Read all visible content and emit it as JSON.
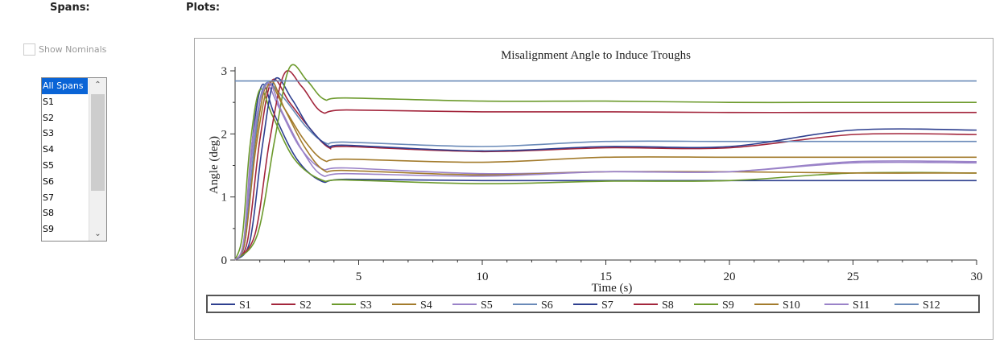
{
  "spans_header": "Spans:",
  "plots_header": "Plots:",
  "show_nominals": {
    "label": "Show Nominals",
    "checked": false,
    "enabled": false
  },
  "spans_list": {
    "items": [
      "All Spans",
      "S1",
      "S2",
      "S3",
      "S4",
      "S5",
      "S6",
      "S7",
      "S8",
      "S9"
    ],
    "selected": "All Spans"
  },
  "chart_data": {
    "type": "line",
    "title": "Misalignment Angle to Induce Troughs",
    "xlabel": "Time (s)",
    "ylabel": "Angle (deg)",
    "xlim": [
      0,
      30
    ],
    "ylim": [
      0,
      3
    ],
    "xticks": [
      5,
      10,
      15,
      20,
      25,
      30
    ],
    "yticks": [
      0,
      1,
      2,
      3
    ],
    "grid": false,
    "legend": "bottom",
    "series": [
      {
        "name": "S1",
        "color": "#2e3f8f",
        "x": [
          0,
          0.4,
          0.7,
          1.1,
          1.6,
          2.5,
          3.5,
          4.5,
          10,
          15,
          20,
          25,
          30
        ],
        "y": [
          0,
          0.3,
          1.9,
          2.78,
          2.3,
          1.6,
          1.25,
          1.28,
          1.26,
          1.26,
          1.26,
          1.26,
          1.26
        ]
      },
      {
        "name": "S2",
        "color": "#a3263c",
        "x": [
          0,
          0.5,
          1.0,
          1.5,
          2.2,
          3.0,
          3.8,
          4.5,
          10,
          15,
          20,
          25,
          30
        ],
        "y": [
          0,
          0.3,
          1.9,
          2.85,
          2.5,
          2.1,
          1.78,
          1.8,
          1.72,
          1.78,
          1.78,
          1.99,
          1.99
        ]
      },
      {
        "name": "S3",
        "color": "#6c9a2c",
        "x": [
          0,
          0.3,
          0.6,
          1.0,
          1.5,
          2.4,
          3.5,
          4.5,
          10,
          15,
          20,
          25,
          30
        ],
        "y": [
          0,
          0.4,
          1.8,
          2.7,
          2.3,
          1.6,
          1.27,
          1.27,
          1.21,
          1.25,
          1.26,
          1.38,
          1.38
        ]
      },
      {
        "name": "S4",
        "color": "#a37b2c",
        "x": [
          0,
          0.4,
          0.8,
          1.3,
          2.0,
          2.8,
          3.6,
          4.5,
          10,
          15,
          20,
          25,
          30
        ],
        "y": [
          0,
          0.3,
          1.8,
          2.8,
          2.4,
          1.9,
          1.58,
          1.6,
          1.55,
          1.63,
          1.63,
          1.63,
          1.63
        ]
      },
      {
        "name": "S5",
        "color": "#9a82c8",
        "x": [
          0,
          0.35,
          0.75,
          1.2,
          1.8,
          2.6,
          3.5,
          4.5,
          10,
          15,
          20,
          25,
          30
        ],
        "y": [
          0,
          0.3,
          1.9,
          2.78,
          2.4,
          1.8,
          1.45,
          1.46,
          1.37,
          1.4,
          1.4,
          1.56,
          1.56
        ]
      },
      {
        "name": "S6",
        "color": "#6a8ab8",
        "x": [
          0,
          0.4,
          0.8,
          1.2,
          1.9,
          2.9,
          3.7,
          4.5,
          10,
          15,
          20,
          25,
          30
        ],
        "y": [
          0,
          0.3,
          1.9,
          2.78,
          2.6,
          2.1,
          1.85,
          1.87,
          1.8,
          1.88,
          1.88,
          1.88,
          1.88
        ]
      },
      {
        "name": "S7",
        "color": "#2e3f8f",
        "x": [
          0,
          0.6,
          1.1,
          1.6,
          2.3,
          3.0,
          3.8,
          4.5,
          10,
          15,
          20,
          25,
          30
        ],
        "y": [
          0,
          0.3,
          1.8,
          2.86,
          2.55,
          2.1,
          1.8,
          1.82,
          1.73,
          1.8,
          1.8,
          2.06,
          2.06
        ]
      },
      {
        "name": "S8",
        "color": "#a3263c",
        "x": [
          0,
          0.8,
          1.4,
          2.0,
          2.7,
          3.5,
          4.5,
          10,
          15,
          20,
          25,
          30
        ],
        "y": [
          0,
          0.4,
          1.9,
          2.96,
          2.75,
          2.35,
          2.38,
          2.35,
          2.35,
          2.34,
          2.34,
          2.34
        ]
      },
      {
        "name": "S9",
        "color": "#6c9a2c",
        "x": [
          0,
          0.9,
          1.6,
          2.2,
          2.9,
          3.6,
          4.5,
          10,
          15,
          20,
          25,
          30
        ],
        "y": [
          0,
          0.4,
          1.9,
          3.05,
          2.85,
          2.55,
          2.57,
          2.52,
          2.52,
          2.5,
          2.5,
          2.5
        ]
      },
      {
        "name": "S10",
        "color": "#a37b2c",
        "x": [
          0,
          0.4,
          0.85,
          1.4,
          2.0,
          2.8,
          3.6,
          4.5,
          10,
          15,
          20,
          25,
          30
        ],
        "y": [
          0,
          0.3,
          1.8,
          2.82,
          2.4,
          1.8,
          1.42,
          1.42,
          1.35,
          1.4,
          1.4,
          1.38,
          1.38
        ]
      },
      {
        "name": "S11",
        "color": "#9a82c8",
        "x": [
          0,
          0.35,
          0.7,
          1.3,
          1.9,
          2.7,
          3.5,
          4.5,
          10,
          15,
          20,
          25,
          30
        ],
        "y": [
          0,
          0.3,
          1.9,
          2.8,
          2.35,
          1.75,
          1.35,
          1.37,
          1.33,
          1.4,
          1.4,
          1.54,
          1.54
        ]
      },
      {
        "name": "S12",
        "color": "#6a8ab8",
        "x": [
          0,
          30
        ],
        "y": [
          2.84,
          2.84
        ]
      }
    ]
  }
}
